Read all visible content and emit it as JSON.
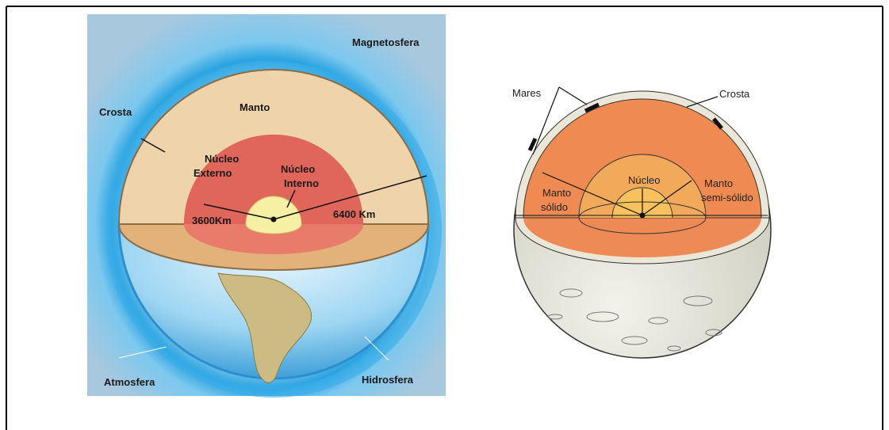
{
  "left": {
    "magnetosphere": "Magnetosfera",
    "crust": "Crosta",
    "mantle": "Manto",
    "outer_core": [
      "Núcleo",
      "Externo"
    ],
    "inner_core": [
      "Núcleo",
      "Interno"
    ],
    "core_radius": "3600Km",
    "earth_radius": "6400 Km",
    "atmosphere": "Atmosfera",
    "hydrosphere": "Hidrosfera"
  },
  "right": {
    "seas": "Mares",
    "crust": "Crosta",
    "core": "Núcleo",
    "solid_mantle": [
      "Manto",
      "sólido"
    ],
    "semisolid_mantle": [
      "Manto",
      "semi-sólido"
    ]
  }
}
